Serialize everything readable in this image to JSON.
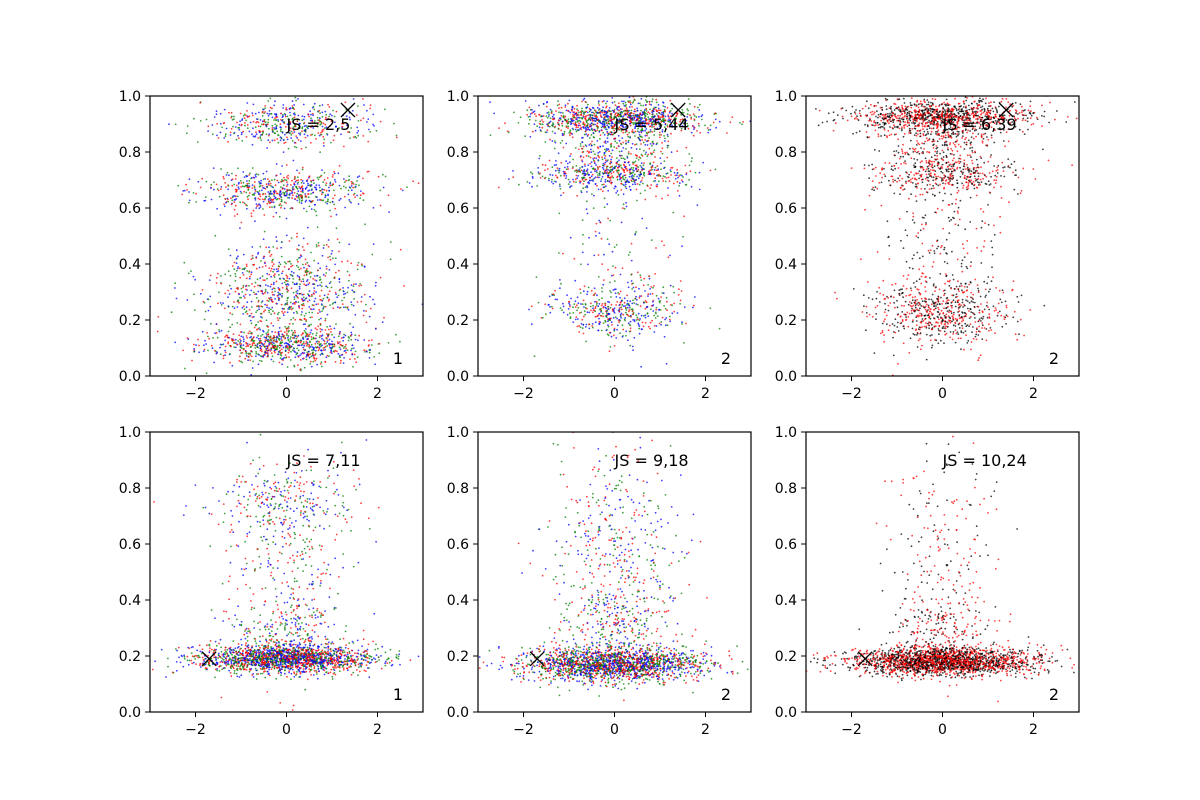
{
  "figure": {
    "layout": "2x3 grid of scatter panels"
  },
  "chart_data": [
    {
      "type": "scatter",
      "panel": "row1-col1",
      "annotation": "JS = 2,5",
      "corner_label": "1",
      "xlim": [
        -3,
        3
      ],
      "ylim": [
        0,
        1
      ],
      "xticks": [
        "−2",
        "0",
        "2"
      ],
      "yticks": [
        "0.0",
        "0.2",
        "0.4",
        "0.6",
        "0.8",
        "1.0"
      ],
      "marker_x": [
        1.35,
        0.95
      ],
      "colors": [
        "#0000ff",
        "#ff0000",
        "#008000"
      ],
      "clusters": [
        {
          "y": 0.11,
          "sy": 0.035,
          "sx": 0.9,
          "w": 0.3
        },
        {
          "y": 0.27,
          "sy": 0.05,
          "sx": 0.9,
          "w": 0.16
        },
        {
          "y": 0.38,
          "sy": 0.05,
          "sx": 0.8,
          "w": 0.1
        },
        {
          "y": 0.66,
          "sy": 0.035,
          "sx": 0.9,
          "w": 0.22
        },
        {
          "y": 0.9,
          "sy": 0.04,
          "sx": 0.9,
          "w": 0.18
        },
        {
          "y": 0.5,
          "sy": 0.25,
          "sx": 1.0,
          "w": 0.04
        }
      ]
    },
    {
      "type": "scatter",
      "panel": "row1-col2",
      "annotation": "JS = 5,44",
      "corner_label": "2",
      "xlim": [
        -3,
        3
      ],
      "ylim": [
        0,
        1
      ],
      "xticks": [
        "−2",
        "0",
        "2"
      ],
      "yticks": [
        "0.0",
        "0.2",
        "0.4",
        "0.6",
        "0.8",
        "1.0"
      ],
      "marker_x": [
        1.4,
        0.95
      ],
      "colors": [
        "#0000ff",
        "#ff0000",
        "#008000"
      ],
      "clusters": [
        {
          "y": 0.92,
          "sy": 0.03,
          "sx": 0.95,
          "w": 0.4
        },
        {
          "y": 0.72,
          "sy": 0.03,
          "sx": 0.85,
          "w": 0.18
        },
        {
          "y": 0.24,
          "sy": 0.05,
          "sx": 0.8,
          "w": 0.17
        },
        {
          "y": 0.82,
          "sy": 0.06,
          "sx": 0.7,
          "w": 0.12
        },
        {
          "y": 0.5,
          "sy": 0.22,
          "sx": 0.7,
          "w": 0.06
        }
      ]
    },
    {
      "type": "scatter",
      "panel": "row1-col3",
      "annotation": "JS = 6,39",
      "corner_label": "2",
      "xlim": [
        -3,
        3
      ],
      "ylim": [
        0,
        1
      ],
      "xticks": [
        "−2",
        "0",
        "2"
      ],
      "yticks": [
        "0.0",
        "0.2",
        "0.4",
        "0.6",
        "0.8",
        "1.0"
      ],
      "marker_x": [
        1.4,
        0.95
      ],
      "colors": [
        "#ff0000",
        "#000000"
      ],
      "clusters": [
        {
          "y": 0.93,
          "sy": 0.03,
          "sx": 0.95,
          "w": 0.42
        },
        {
          "y": 0.72,
          "sy": 0.035,
          "sx": 0.8,
          "w": 0.15
        },
        {
          "y": 0.84,
          "sy": 0.05,
          "sx": 0.6,
          "w": 0.1
        },
        {
          "y": 0.23,
          "sy": 0.06,
          "sx": 0.75,
          "w": 0.22
        },
        {
          "y": 0.45,
          "sy": 0.2,
          "sx": 0.7,
          "w": 0.11
        }
      ]
    },
    {
      "type": "scatter",
      "panel": "row2-col1",
      "annotation": "JS = 7,11",
      "corner_label": "1",
      "xlim": [
        -3,
        3
      ],
      "ylim": [
        0,
        1
      ],
      "xticks": [
        "−2",
        "0",
        "2"
      ],
      "yticks": [
        "0.0",
        "0.2",
        "0.4",
        "0.6",
        "0.8",
        "1.0"
      ],
      "marker_x": [
        -1.7,
        0.19
      ],
      "colors": [
        "#0000ff",
        "#ff0000",
        "#008000"
      ],
      "clusters": [
        {
          "y": 0.19,
          "sy": 0.025,
          "sx": 1.0,
          "w": 0.72
        },
        {
          "y": 0.75,
          "sy": 0.06,
          "sx": 0.8,
          "w": 0.09
        },
        {
          "y": 0.55,
          "sy": 0.2,
          "sx": 0.7,
          "w": 0.12
        },
        {
          "y": 0.3,
          "sy": 0.05,
          "sx": 0.6,
          "w": 0.07
        }
      ]
    },
    {
      "type": "scatter",
      "panel": "row2-col2",
      "annotation": "JS = 9,18",
      "corner_label": "2",
      "xlim": [
        -3,
        3
      ],
      "ylim": [
        0,
        1
      ],
      "xticks": [
        "−2",
        "0",
        "2"
      ],
      "yticks": [
        "0.0",
        "0.2",
        "0.4",
        "0.6",
        "0.8",
        "1.0"
      ],
      "marker_x": [
        -1.7,
        0.19
      ],
      "colors": [
        "#0000ff",
        "#ff0000",
        "#008000"
      ],
      "clusters": [
        {
          "y": 0.17,
          "sy": 0.03,
          "sx": 1.0,
          "w": 0.74
        },
        {
          "y": 0.55,
          "sy": 0.22,
          "sx": 0.7,
          "w": 0.2
        },
        {
          "y": 0.32,
          "sy": 0.05,
          "sx": 0.7,
          "w": 0.06
        }
      ]
    },
    {
      "type": "scatter",
      "panel": "row2-col3",
      "annotation": "JS = 10,24",
      "corner_label": "2",
      "xlim": [
        -3,
        3
      ],
      "ylim": [
        0,
        1
      ],
      "xticks": [
        "−2",
        "0",
        "2"
      ],
      "yticks": [
        "0.0",
        "0.2",
        "0.4",
        "0.6",
        "0.8",
        "1.0"
      ],
      "marker_x": [
        -1.7,
        0.19
      ],
      "colors": [
        "#ff0000",
        "#000000"
      ],
      "clusters": [
        {
          "y": 0.18,
          "sy": 0.025,
          "sx": 1.0,
          "w": 0.85
        },
        {
          "y": 0.55,
          "sy": 0.2,
          "sx": 0.6,
          "w": 0.09
        },
        {
          "y": 0.3,
          "sy": 0.05,
          "sx": 0.5,
          "w": 0.06
        }
      ]
    }
  ]
}
